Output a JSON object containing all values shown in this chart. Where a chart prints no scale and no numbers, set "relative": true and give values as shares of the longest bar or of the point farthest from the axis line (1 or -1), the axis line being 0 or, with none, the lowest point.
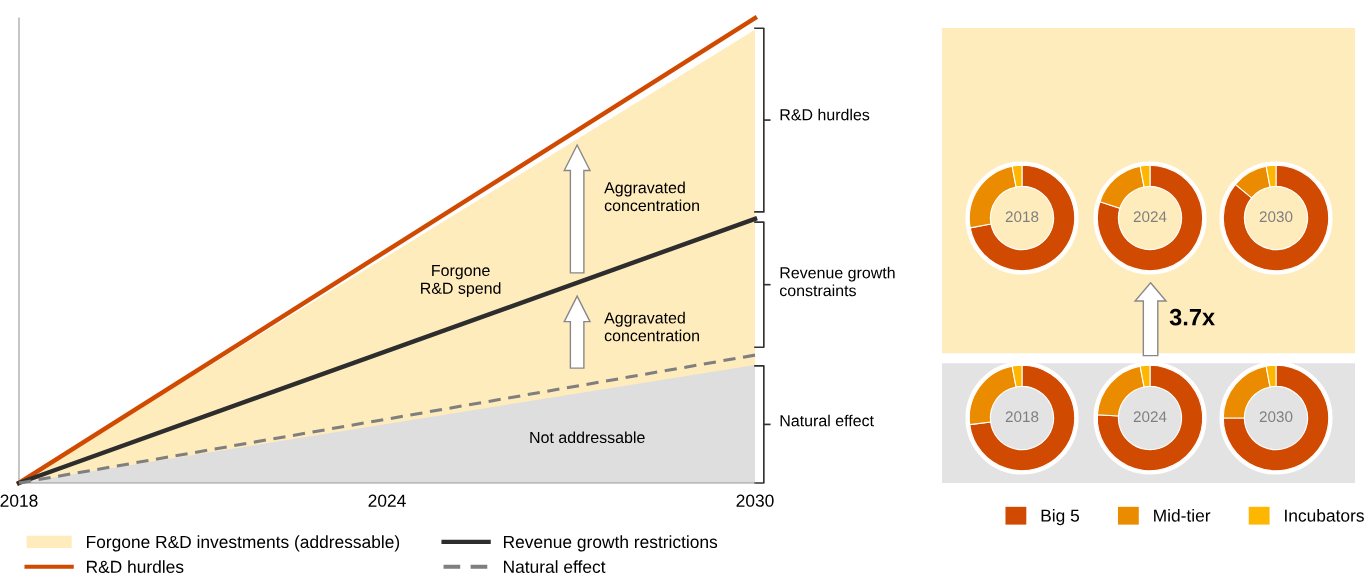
{
  "chart_data": [
    {
      "type": "line",
      "relative": true,
      "x": [
        2018,
        2030
      ],
      "xlim": [
        2018,
        2030
      ],
      "xticks": [
        2018,
        2024,
        2030
      ],
      "legend": "bottom",
      "tick_labels": "x",
      "series": [
        {
          "name": "Forgone R&D investments (addressable)",
          "type": "area",
          "color": "#ffecbd",
          "values": [
            0,
            0.975
          ]
        },
        {
          "type": "area",
          "color": "#dedede",
          "values": [
            0,
            0.254
          ]
        },
        {
          "name": "R&D hurdles",
          "color": "#d04a02",
          "values": [
            0,
            1
          ]
        },
        {
          "name": "Revenue growth restrictions",
          "color": "#2d2d2d",
          "values": [
            0,
            0.568
          ]
        },
        {
          "name": "Natural effect",
          "color": "#7f7f7f",
          "line_style": "dashed",
          "values": [
            0,
            0.275
          ]
        }
      ],
      "annotations": [
        "R&D hurdles",
        "Revenue growth\nconstraints",
        "Natural effect",
        "Aggravated\nconcentration",
        "Aggravated\nconcentration",
        "Forgone\nR&D spend",
        "Not addressable"
      ]
    },
    {
      "type": "other",
      "annotations": [
        "3.7x"
      ]
    },
    {
      "type": "donut",
      "categories": [
        "Big 5",
        "Mid-tier",
        "Incubators"
      ],
      "values": [
        72,
        25,
        3
      ],
      "colors": [
        "#d04a02",
        "#eb8c00",
        "#ffb600"
      ],
      "annotations": [
        "2018"
      ],
      "legend": "bottom"
    },
    {
      "type": "donut",
      "categories": [
        null,
        null,
        null
      ],
      "values": [
        80,
        17,
        3
      ],
      "colors": [
        "#d04a02",
        "#eb8c00",
        "#ffb600"
      ],
      "annotations": [
        "2024"
      ]
    },
    {
      "type": "donut",
      "categories": [
        null,
        null,
        null
      ],
      "values": [
        86,
        11,
        3
      ],
      "colors": [
        "#d04a02",
        "#eb8c00",
        "#ffb600"
      ],
      "annotations": [
        "2030"
      ]
    },
    {
      "type": "donut",
      "categories": [
        null,
        null,
        null
      ],
      "values": [
        73,
        24,
        3
      ],
      "colors": [
        "#d04a02",
        "#eb8c00",
        "#ffb600"
      ],
      "annotations": [
        "2018"
      ]
    },
    {
      "type": "donut",
      "categories": [
        null,
        null,
        null
      ],
      "values": [
        76,
        21,
        3
      ],
      "colors": [
        "#d04a02",
        "#eb8c00",
        "#ffb600"
      ],
      "annotations": [
        "2024"
      ]
    },
    {
      "type": "donut",
      "categories": [
        null,
        null,
        null
      ],
      "values": [
        75,
        22,
        3
      ],
      "colors": [
        "#d04a02",
        "#eb8c00",
        "#ffb600"
      ],
      "annotations": [
        "2030"
      ]
    }
  ]
}
